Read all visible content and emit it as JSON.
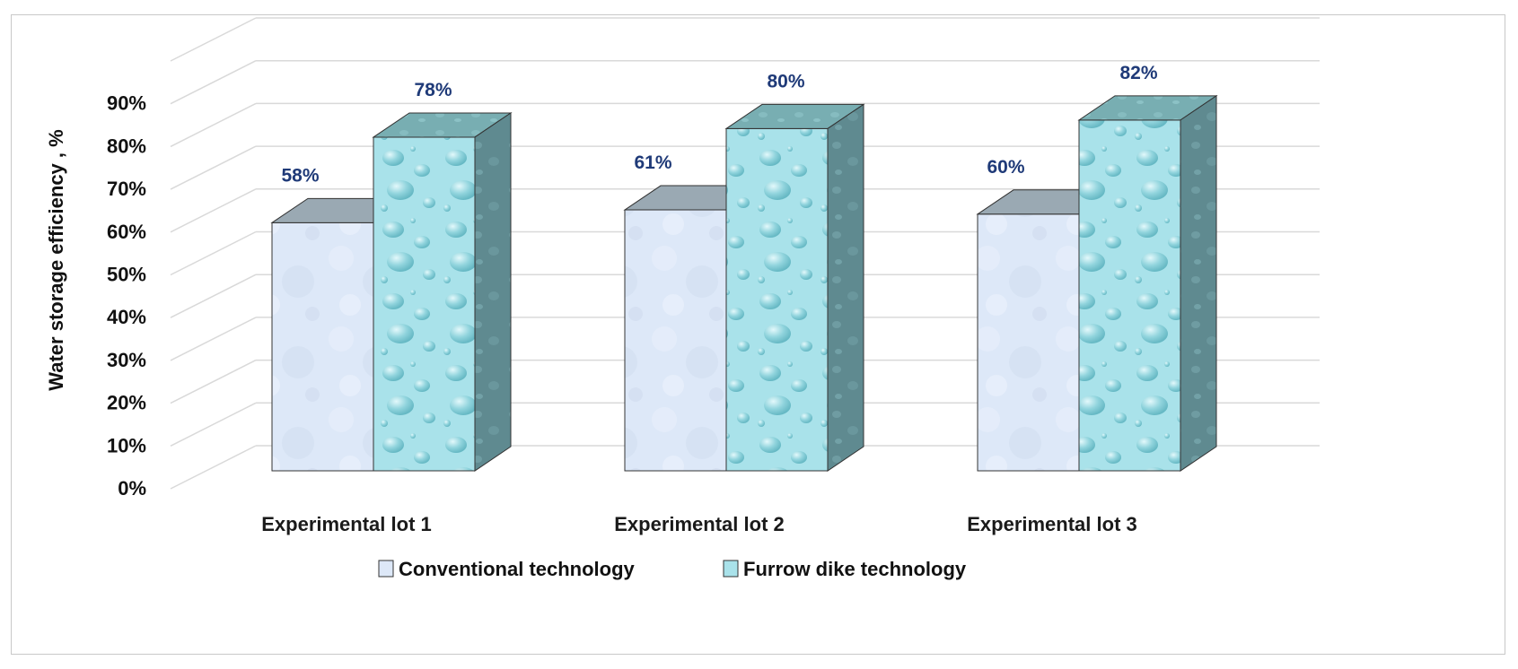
{
  "chart_data": {
    "type": "bar",
    "title": "",
    "xlabel": "",
    "ylabel": "Water storage efficiency , %",
    "ylim": [
      0,
      1
    ],
    "grid": true,
    "yticks": [
      "0%",
      "10%",
      "20%",
      "30%",
      "40%",
      "50%",
      "60%",
      "70%",
      "80%",
      "90%"
    ],
    "categories": [
      "Experimental lot 1",
      "Experimental lot 2",
      "Experimental lot 3"
    ],
    "series": [
      {
        "name": "Conventional technology",
        "values": [
          0.58,
          0.61,
          0.6
        ],
        "labels": [
          "58%",
          "61%",
          "60%"
        ]
      },
      {
        "name": "Furrow dike technology",
        "values": [
          0.78,
          0.8,
          0.82
        ],
        "labels": [
          "78%",
          "80%",
          "82%"
        ]
      }
    ],
    "legend_position": "bottom",
    "colors": {
      "conventional_front": "#dde8f8",
      "conventional_top": "#9aa9b3",
      "furrow_front": "#a9e2ea",
      "furrow_top": "#78aeb2",
      "furrow_side": "#5f8a90",
      "gridline": "#d9d9d9",
      "label": "#1f3a78"
    }
  }
}
